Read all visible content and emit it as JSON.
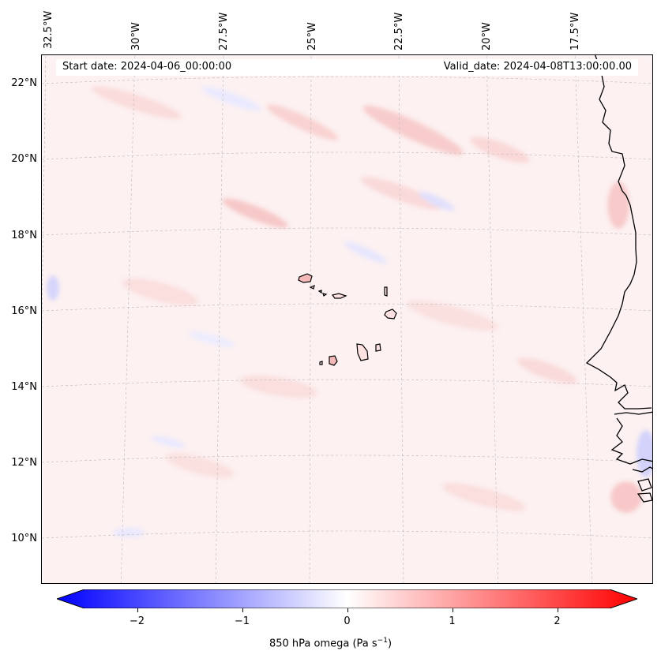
{
  "header": {
    "start_date": "Start date: 2024-04-06_00:00:00",
    "valid_date": "Valid_date: 2024-04-08T13:00:00.00"
  },
  "map": {
    "lon_labels": [
      "32.5°W",
      "30°W",
      "27.5°W",
      "25°W",
      "22.5°W",
      "20°W",
      "17.5°W"
    ],
    "lat_labels": [
      "22°N",
      "20°N",
      "18°N",
      "16°N",
      "14°N",
      "12°N",
      "10°N"
    ],
    "variable": "850 hPa omega"
  },
  "colorbar": {
    "ticks": [
      "−2",
      "−1",
      "0",
      "1",
      "2"
    ],
    "tick_values": [
      -2,
      -1,
      0,
      1,
      2
    ],
    "range": [
      -2.5,
      2.5
    ],
    "label_prefix": "850 hPa omega (Pa s",
    "label_exp": "−1",
    "label_suffix": ")",
    "min_color": "#0000ff",
    "mid_color": "#ffffff",
    "max_color": "#ff0000"
  }
}
